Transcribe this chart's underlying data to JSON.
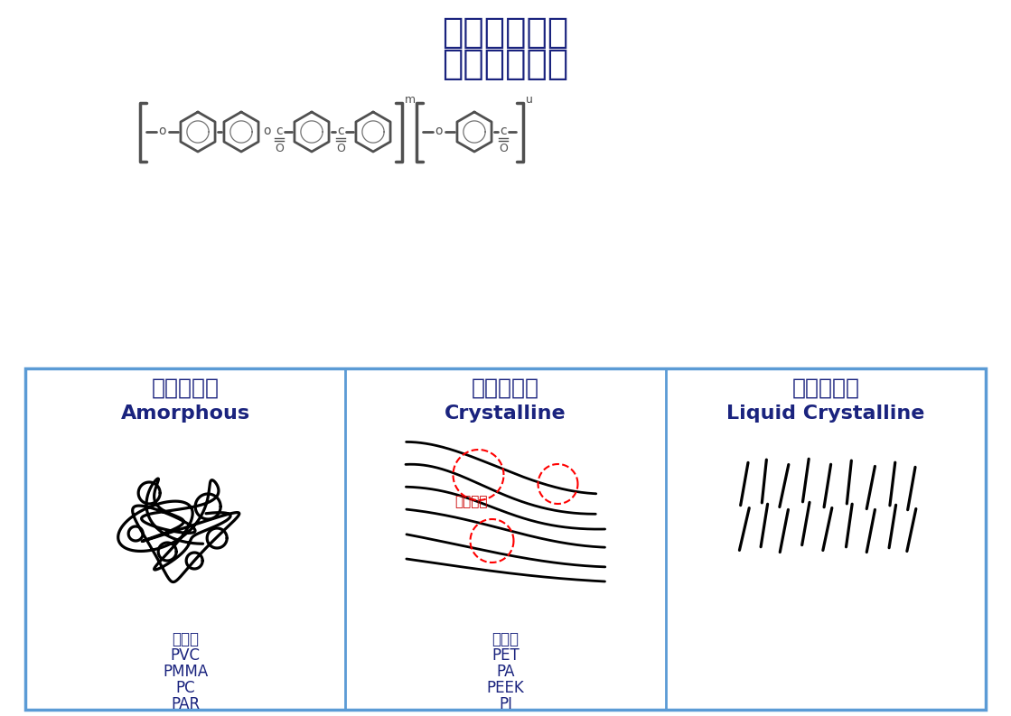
{
  "title_line1": "超级工程塑料",
  "title_line2": "液晶膜構造式",
  "title_color": "#1a237e",
  "title_fontsize": 28,
  "bg_color": "#ffffff",
  "panel_border_color": "#5b9bd5",
  "panel_border_lw": 2.0,
  "panel1_title_zh": "非晶性塑料",
  "panel1_title_en": "Amorphous",
  "panel2_title_zh": "結晶性塑料",
  "panel2_title_en": "Crystalline",
  "panel3_title_zh": "液晶聚合物",
  "panel3_title_en": "Liquid Crystalline",
  "panel_title_color": "#1a237e",
  "panel_title_fontsize_zh": 18,
  "panel_title_fontsize_en": 16,
  "panel1_examples": [
    "【例】",
    "PVC",
    "PMMA",
    "PC",
    "PAR"
  ],
  "panel2_examples": [
    "【例】",
    "PET",
    "PA",
    "PEEK",
    "PI"
  ],
  "example_color": "#1a237e",
  "example_fontsize": 12,
  "crystalline_label": "結晶組織",
  "crystalline_label_color": "#cc0000",
  "struct_color": "#505050"
}
